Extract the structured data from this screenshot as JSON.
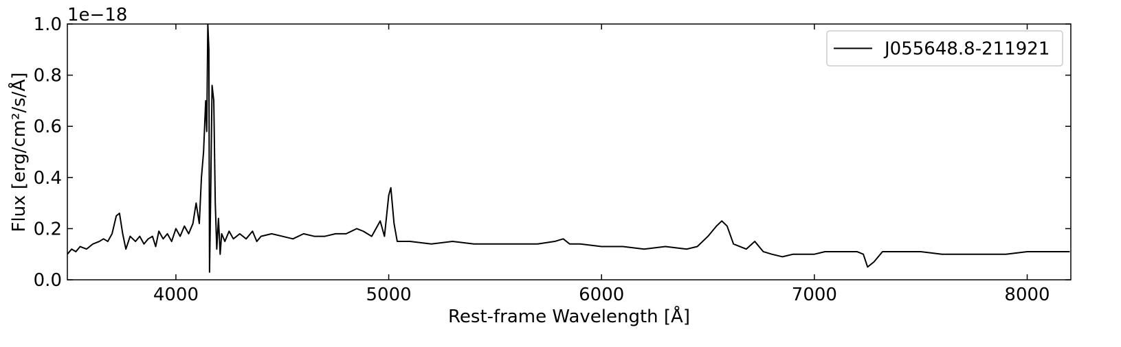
{
  "chart_data": {
    "type": "line",
    "xlabel": "Rest-frame Wavelength [Å]",
    "ylabel": "Flux [erg/cm²/s/Å]",
    "offset_text": "1e−18",
    "legend": "upper right",
    "xlim": [
      3490,
      8205
    ],
    "ylim": [
      0,
      1
    ],
    "xticks": [
      4000,
      5000,
      6000,
      7000,
      8000
    ],
    "yticks": [
      {
        "value": 0,
        "label": "0.0"
      },
      0.2,
      0.4,
      0.6,
      0.8,
      {
        "value": 1,
        "label": "1.0"
      }
    ],
    "x": [
      3490,
      3510,
      3530,
      3550,
      3580,
      3610,
      3640,
      3660,
      3680,
      3700,
      3720,
      3735,
      3750,
      3765,
      3785,
      3810,
      3830,
      3850,
      3870,
      3890,
      3905,
      3920,
      3940,
      3960,
      3980,
      4000,
      4020,
      4040,
      4060,
      4080,
      4095,
      4110,
      4120,
      4130,
      4140,
      4145,
      4150,
      4155,
      4158,
      4163,
      4170,
      4178,
      4185,
      4192,
      4200,
      4208,
      4215,
      4230,
      4250,
      4270,
      4300,
      4330,
      4360,
      4380,
      4400,
      4450,
      4500,
      4550,
      4600,
      4650,
      4700,
      4750,
      4800,
      4850,
      4880,
      4920,
      4960,
      4980,
      5000,
      5010,
      5025,
      5040,
      5100,
      5200,
      5300,
      5400,
      5500,
      5600,
      5700,
      5780,
      5820,
      5850,
      5900,
      6000,
      6100,
      6200,
      6300,
      6400,
      6450,
      6500,
      6540,
      6565,
      6590,
      6620,
      6680,
      6720,
      6760,
      6800,
      6850,
      6900,
      7000,
      7050,
      7100,
      7150,
      7200,
      7230,
      7250,
      7280,
      7320,
      7400,
      7500,
      7600,
      7700,
      7800,
      7900,
      8000,
      8100,
      8200
    ],
    "series": [
      {
        "name": "J055648.8-211921",
        "color": "#000000",
        "values": [
          0.1,
          0.12,
          0.11,
          0.13,
          0.12,
          0.14,
          0.15,
          0.16,
          0.15,
          0.18,
          0.25,
          0.26,
          0.18,
          0.12,
          0.17,
          0.15,
          0.17,
          0.14,
          0.16,
          0.17,
          0.13,
          0.19,
          0.16,
          0.18,
          0.15,
          0.2,
          0.17,
          0.21,
          0.18,
          0.22,
          0.3,
          0.22,
          0.4,
          0.5,
          0.7,
          0.58,
          1.0,
          0.9,
          0.03,
          0.3,
          0.76,
          0.7,
          0.3,
          0.12,
          0.24,
          0.1,
          0.18,
          0.15,
          0.19,
          0.16,
          0.18,
          0.16,
          0.19,
          0.15,
          0.17,
          0.18,
          0.17,
          0.16,
          0.18,
          0.17,
          0.17,
          0.18,
          0.18,
          0.2,
          0.19,
          0.17,
          0.23,
          0.17,
          0.33,
          0.36,
          0.22,
          0.15,
          0.15,
          0.14,
          0.15,
          0.14,
          0.14,
          0.14,
          0.14,
          0.15,
          0.16,
          0.14,
          0.14,
          0.13,
          0.13,
          0.12,
          0.13,
          0.12,
          0.13,
          0.17,
          0.21,
          0.23,
          0.21,
          0.14,
          0.12,
          0.15,
          0.11,
          0.1,
          0.09,
          0.1,
          0.1,
          0.11,
          0.11,
          0.11,
          0.11,
          0.1,
          0.05,
          0.07,
          0.11,
          0.11,
          0.11,
          0.1,
          0.1,
          0.1,
          0.1,
          0.11,
          0.11,
          0.11
        ]
      }
    ]
  }
}
